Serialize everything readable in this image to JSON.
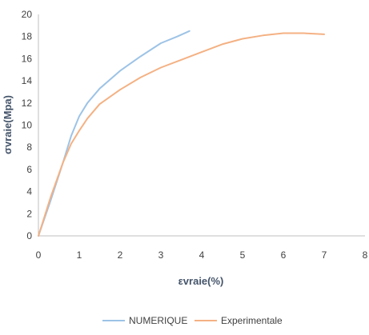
{
  "chart_data": {
    "type": "line",
    "title": "",
    "xlabel": "εvraie(%)",
    "ylabel": "σvraie(Mpa)",
    "xlim": [
      0,
      8
    ],
    "ylim": [
      0,
      20
    ],
    "xticks": [
      "0",
      "1",
      "2",
      "3",
      "4",
      "5",
      "6",
      "7",
      "8"
    ],
    "yticks": [
      "0",
      "2",
      "4",
      "6",
      "8",
      "10",
      "12",
      "14",
      "16",
      "18",
      "20"
    ],
    "grid": false,
    "legend_position": "bottom",
    "series": [
      {
        "name": "NUMERIQUE",
        "color": "#9dc3e6",
        "x": [
          0,
          0.3,
          0.6,
          0.8,
          1.0,
          1.2,
          1.5,
          2.0,
          2.5,
          3.0,
          3.4,
          3.7
        ],
        "y": [
          0,
          3.2,
          6.6,
          9.0,
          10.8,
          12.0,
          13.3,
          14.9,
          16.2,
          17.4,
          18.0,
          18.5
        ]
      },
      {
        "name": "Experimentale",
        "color": "#f4b183",
        "x": [
          0,
          0.3,
          0.6,
          0.8,
          1.0,
          1.2,
          1.5,
          2.0,
          2.5,
          3.0,
          3.5,
          4.0,
          4.5,
          5.0,
          5.5,
          6.0,
          6.5,
          7.0
        ],
        "y": [
          0,
          3.5,
          6.6,
          8.3,
          9.5,
          10.6,
          11.9,
          13.2,
          14.3,
          15.2,
          15.9,
          16.6,
          17.3,
          17.8,
          18.1,
          18.3,
          18.3,
          18.2
        ]
      }
    ]
  }
}
